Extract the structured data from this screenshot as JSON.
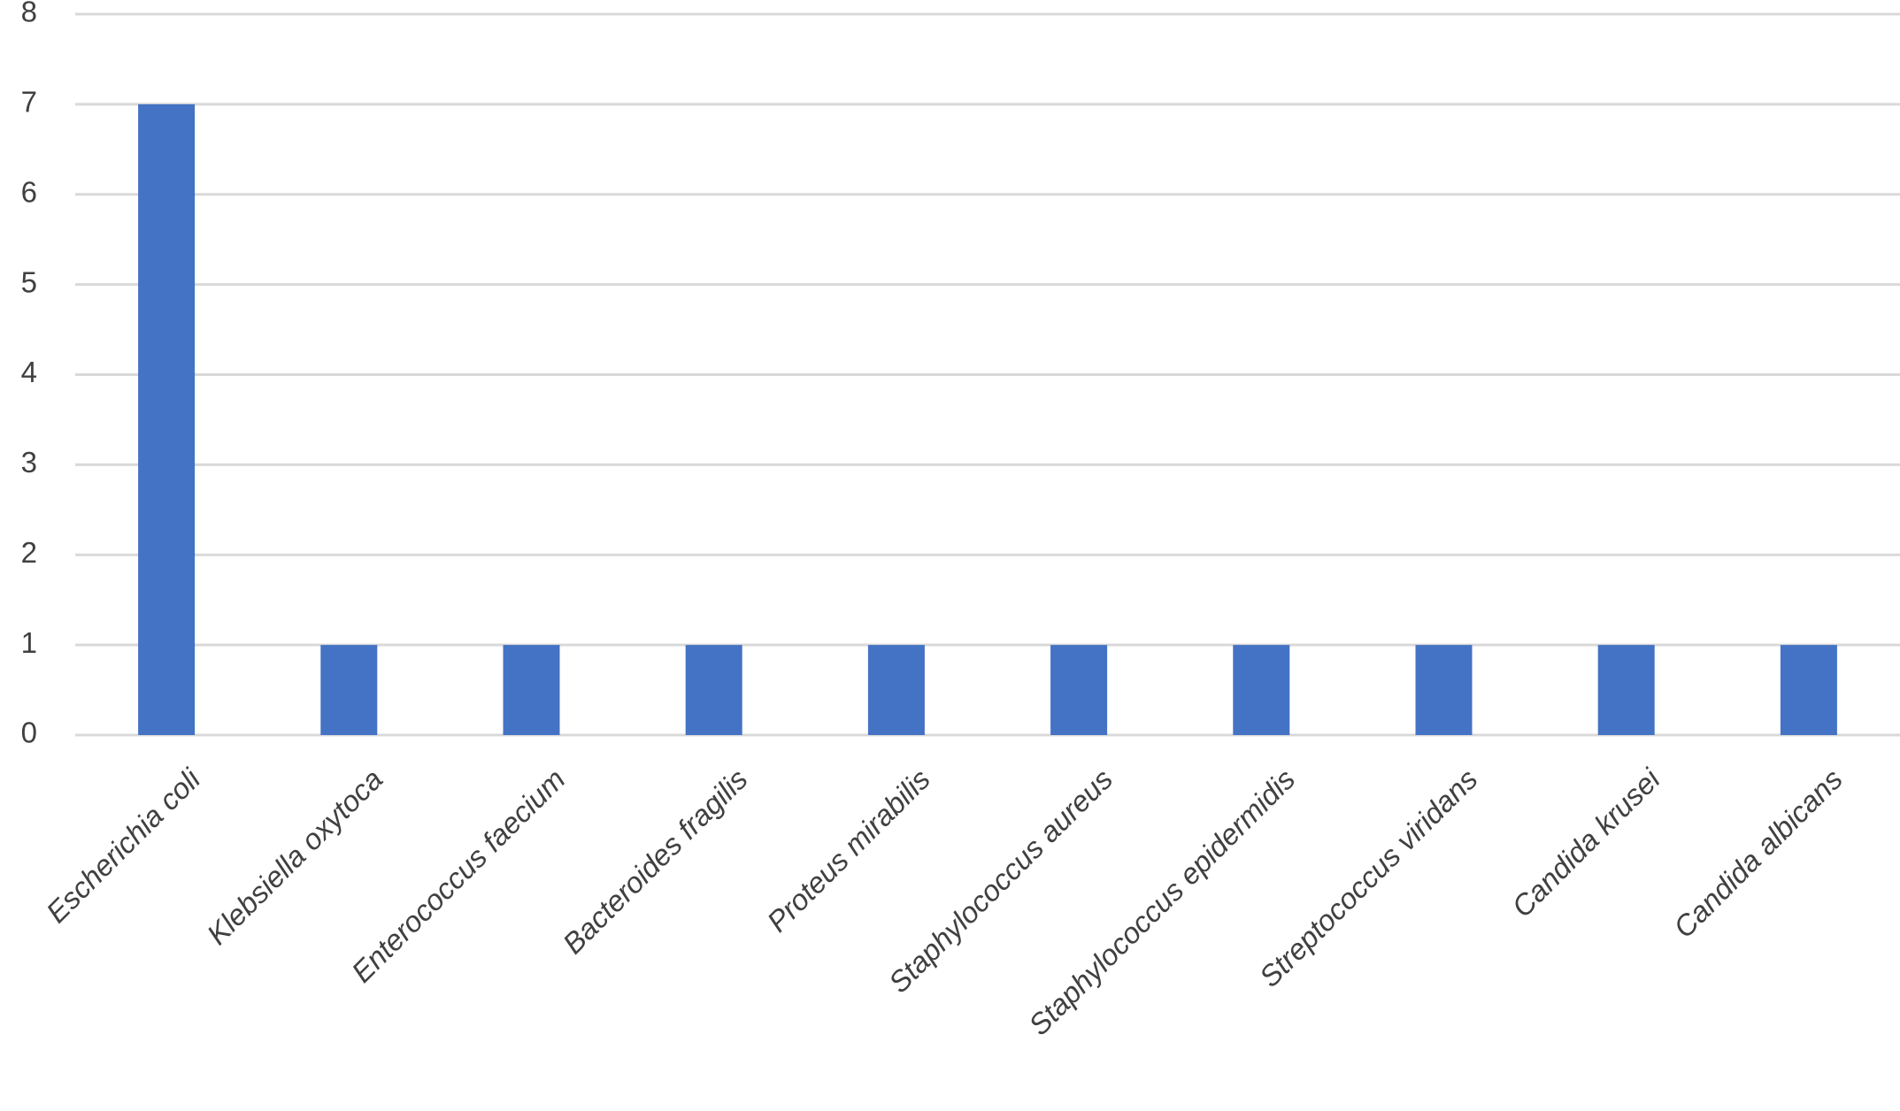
{
  "chart_data": {
    "type": "bar",
    "categories": [
      "Escherichia coli",
      "Klebsiella oxytoca",
      "Enterococcus faecium",
      "Bacteroides fragilis",
      "Proteus mirabilis",
      "Staphylococcus aureus",
      "Staphylococcus epidermidis",
      "Streptococcus viridans",
      "Candida krusei",
      "Candida albicans"
    ],
    "values": [
      7,
      1,
      1,
      1,
      1,
      1,
      1,
      1,
      1,
      1
    ],
    "color": "#4472c4",
    "ylim": [
      0,
      8
    ],
    "yticks": [
      0,
      1,
      2,
      3,
      4,
      5,
      6,
      7,
      8
    ],
    "grid": true
  }
}
